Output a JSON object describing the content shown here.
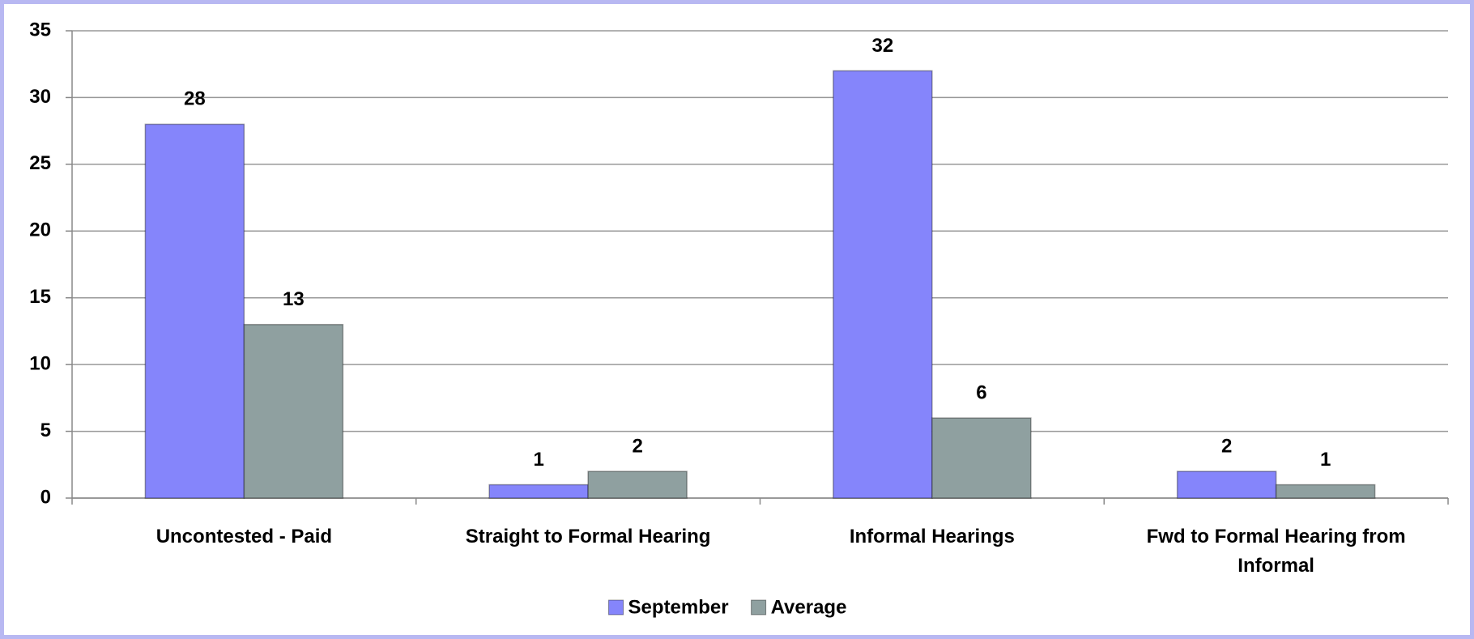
{
  "chart_data": {
    "type": "bar",
    "categories": [
      "Uncontested - Paid",
      "Straight to Formal Hearing",
      "Informal Hearings",
      "Fwd to Formal Hearing from Informal"
    ],
    "series": [
      {
        "name": "September",
        "color": "#8585fb",
        "values": [
          28,
          1,
          32,
          2
        ]
      },
      {
        "name": "Average",
        "color": "#8fa0a0",
        "values": [
          13,
          2,
          6,
          1
        ]
      }
    ],
    "ylim": [
      0,
      35
    ],
    "yticks": [
      0,
      5,
      10,
      15,
      20,
      25,
      30,
      35
    ],
    "grid": true,
    "legend": "bottom"
  }
}
